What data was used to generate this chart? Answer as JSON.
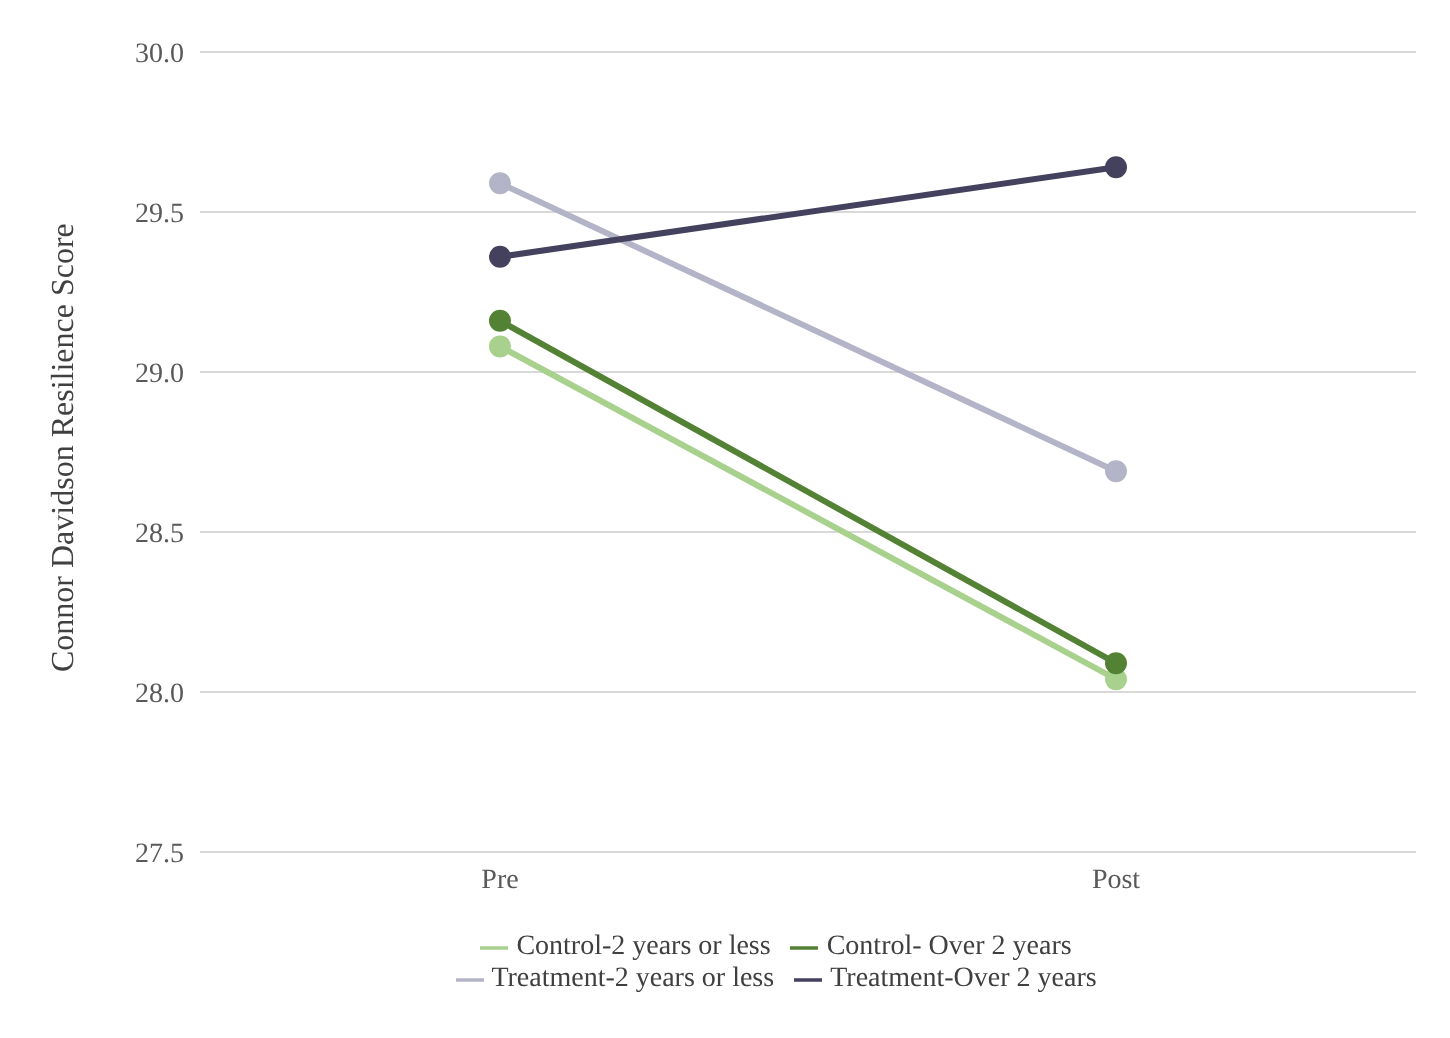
{
  "chart_data": {
    "type": "line",
    "ylabel": "Connor Davidson Resilience Score",
    "categories": [
      "Pre",
      "Post"
    ],
    "series": [
      {
        "name": "Control-2 years or less",
        "color": "#a9d18e",
        "values": [
          29.08,
          28.04
        ]
      },
      {
        "name": "Control- Over 2 years",
        "color": "#548235",
        "values": [
          29.16,
          28.09
        ]
      },
      {
        "name": "Treatment-2 years or less",
        "color": "#b4b4c8",
        "values": [
          29.59,
          28.69
        ]
      },
      {
        "name": "Treatment-Over 2 years",
        "color": "#44415e",
        "values": [
          29.36,
          29.64
        ]
      }
    ],
    "ylim": [
      27.5,
      30
    ],
    "yticks": [
      {
        "value": 27.5,
        "label": "27.5"
      },
      {
        "value": 28,
        "label": "28.0"
      },
      {
        "value": 28.5,
        "label": "28.5"
      },
      {
        "value": 29,
        "label": "29.0"
      },
      {
        "value": 29.5,
        "label": "29.5"
      },
      {
        "value": 30,
        "label": "30.0"
      }
    ],
    "grid": "y",
    "legend": "bottom",
    "marker": "circle",
    "line_style": "solid"
  }
}
